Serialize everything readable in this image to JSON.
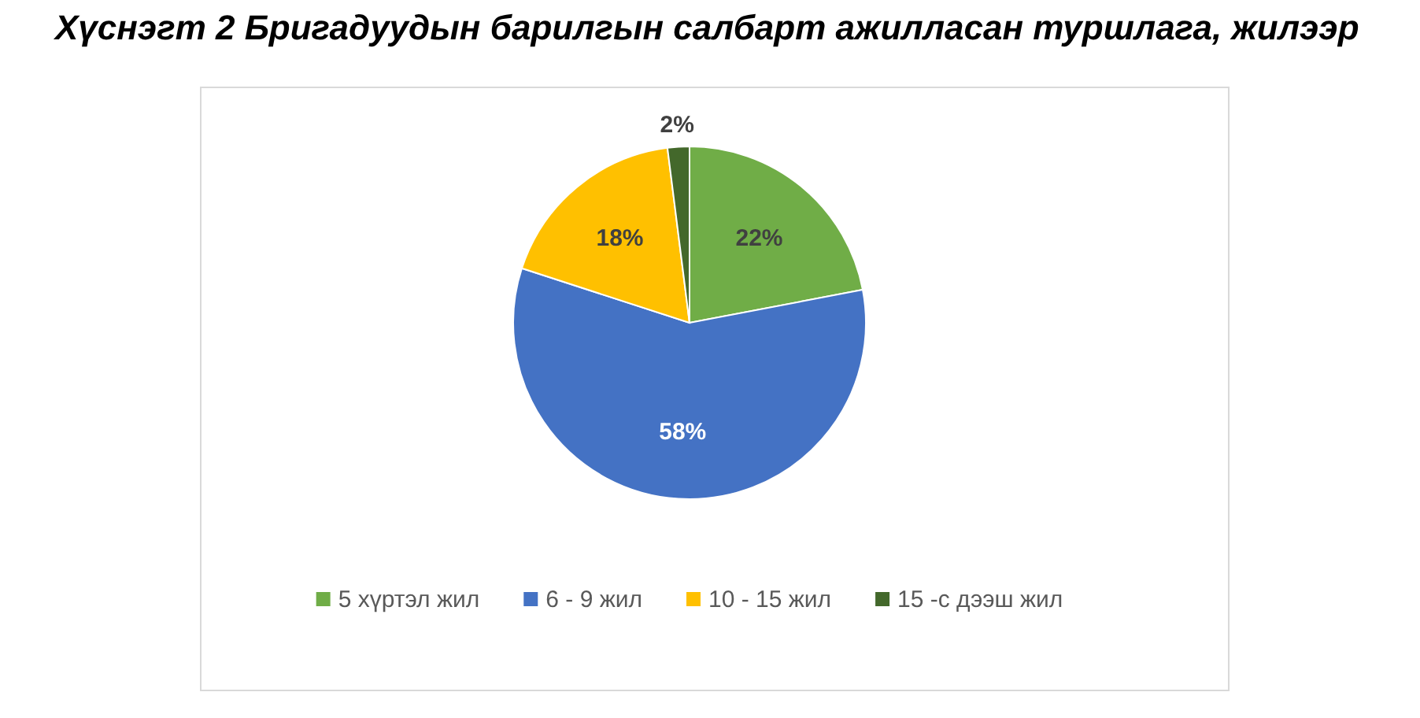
{
  "chart_data": {
    "type": "pie",
    "title": "Хүснэгт 2 Бригадуудын барилгын салбарт ажилласан туршлага, жилээр",
    "categories": [
      "5 хүртэл жил",
      "6 - 9 жил",
      "10 - 15 жил",
      "15 -с дээш жил"
    ],
    "values": [
      22,
      58,
      18,
      2
    ],
    "colors": [
      "#70ad47",
      "#4472c4",
      "#ffc000",
      "#43682b"
    ],
    "value_labels": [
      "22%",
      "58%",
      "18%",
      "2%"
    ],
    "legend": "bottom"
  }
}
